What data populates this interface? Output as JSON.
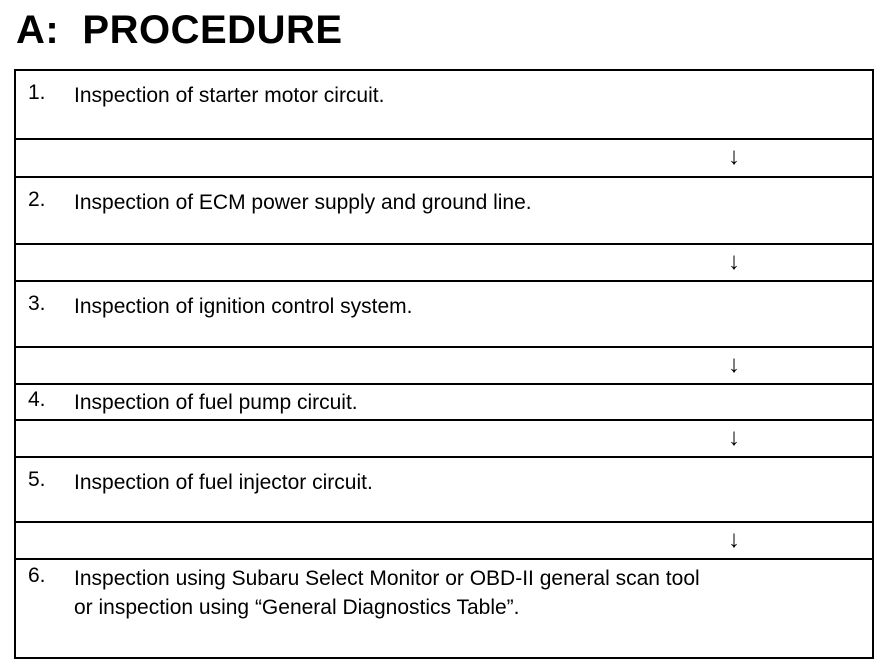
{
  "title": "A:  PROCEDURE",
  "steps": [
    {
      "number": "1.",
      "text": "Inspection of starter motor circuit."
    },
    {
      "number": "2.",
      "text": "Inspection of ECM power supply and ground line."
    },
    {
      "number": "3.",
      "text": "Inspection of ignition control system."
    },
    {
      "number": "4.",
      "text": "Inspection of fuel pump circuit."
    },
    {
      "number": "5.",
      "text": "Inspection of fuel injector circuit."
    },
    {
      "number": "6.",
      "text": "Inspection using Subaru Select Monitor or OBD-II general scan tool\nor inspection using “General Diagnostics Table”."
    }
  ],
  "arrow": "↓"
}
